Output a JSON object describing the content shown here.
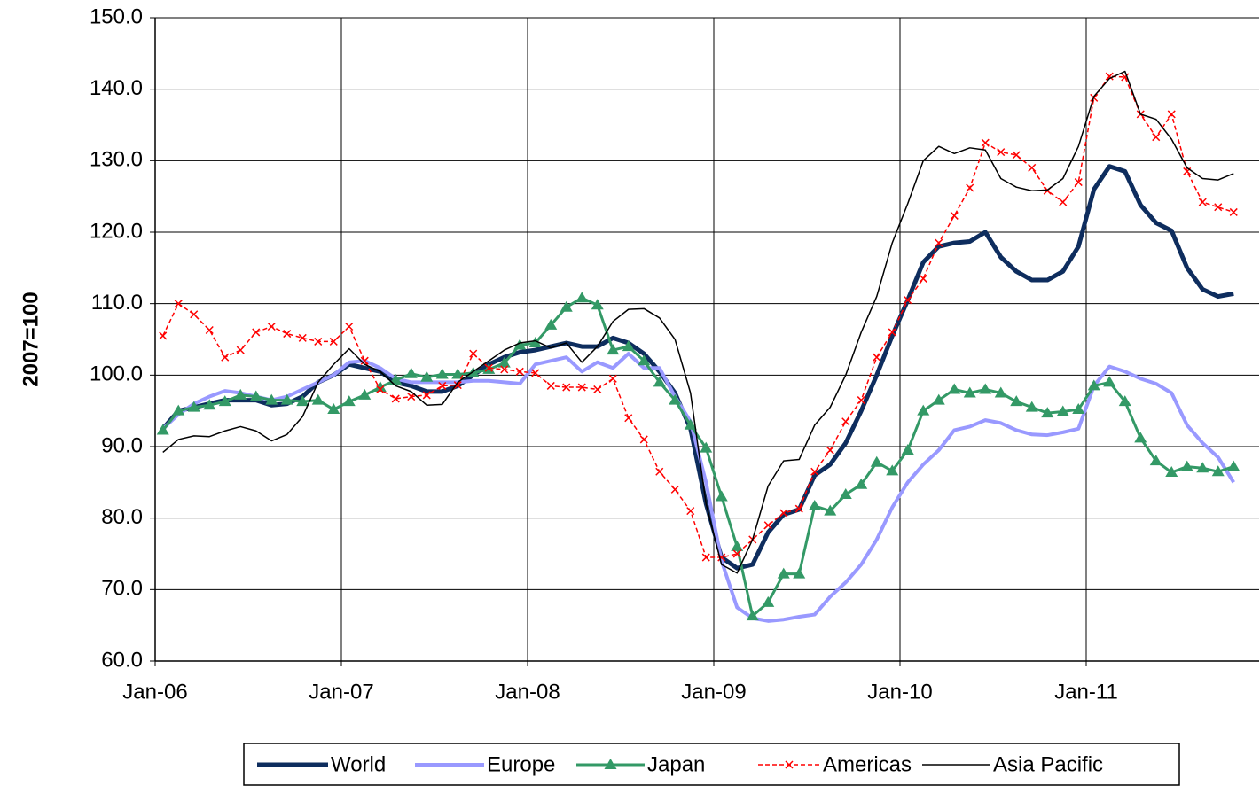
{
  "chart_data": {
    "type": "line",
    "y_label": "2007=100",
    "categories": [
      "Jan-06",
      null,
      null,
      null,
      null,
      null,
      null,
      null,
      null,
      null,
      null,
      null,
      "Jan-07",
      null,
      null,
      null,
      null,
      null,
      null,
      null,
      null,
      null,
      null,
      null,
      "Jan-08",
      null,
      null,
      null,
      null,
      null,
      null,
      null,
      null,
      null,
      null,
      null,
      "Jan-09",
      null,
      null,
      null,
      null,
      null,
      null,
      null,
      null,
      null,
      null,
      null,
      "Jan-10",
      null,
      null,
      null,
      null,
      null,
      null,
      null,
      null,
      null,
      null,
      null,
      "Jan-11",
      null,
      null,
      null,
      null,
      null,
      null,
      null,
      null,
      null
    ],
    "ylim": [
      60,
      150
    ],
    "yticks": [
      {
        "value": 60,
        "label": "60.0"
      },
      {
        "value": 70,
        "label": "70.0"
      },
      {
        "value": 80,
        "label": "80.0"
      },
      {
        "value": 90,
        "label": "90.0"
      },
      {
        "value": 100,
        "label": "100.0"
      },
      {
        "value": 110,
        "label": "110.0"
      },
      {
        "value": 120,
        "label": "120.0"
      },
      {
        "value": 130,
        "label": "130.0"
      },
      {
        "value": 140,
        "label": "140.0"
      },
      {
        "value": 150,
        "label": "150.0"
      }
    ],
    "grid": true,
    "legend": "bottom",
    "series": [
      {
        "name": "World",
        "color": "#0e2d5e",
        "width": 5,
        "marker": "none",
        "dash": "solid",
        "values": [
          92.5,
          95,
          95.5,
          96,
          96.5,
          96.5,
          96.5,
          95.8,
          96,
          97,
          99,
          100,
          101.5,
          101,
          100.5,
          99,
          98.5,
          97.7,
          97.7,
          98.5,
          100,
          101.5,
          102.5,
          103.2,
          103.5,
          104,
          104.5,
          104,
          104,
          105.2,
          104.5,
          103,
          100.5,
          97.5,
          92.5,
          82,
          74.5,
          73,
          73.5,
          78,
          80.5,
          81.2,
          86,
          87.5,
          90.5,
          95,
          100,
          105.5,
          110.5,
          115.8,
          118,
          118.5,
          118.7,
          120,
          116.5,
          114.5,
          113.3,
          113.3,
          114.5,
          118,
          126,
          129.2,
          128.5,
          123.8,
          121.3,
          120.2,
          115,
          112,
          111,
          111.4
        ]
      },
      {
        "name": "Europe",
        "color": "#9999ff",
        "width": 4,
        "marker": "none",
        "dash": "solid",
        "values": [
          92.5,
          94.5,
          96,
          97,
          97.8,
          97.5,
          97,
          96.5,
          97,
          98,
          99,
          100,
          101.8,
          102,
          101,
          99.5,
          99,
          99,
          99,
          99,
          99.2,
          99.2,
          99,
          98.8,
          101.5,
          102,
          102.5,
          100.5,
          101.8,
          101,
          103,
          101,
          101,
          97,
          93.5,
          85,
          74,
          67.5,
          66,
          65.6,
          65.8,
          66.2,
          66.5,
          69,
          71,
          73.5,
          77,
          81.5,
          85,
          87.5,
          89.5,
          92.3,
          92.8,
          93.7,
          93.3,
          92.3,
          91.7,
          91.6,
          92,
          92.5,
          98.5,
          101.2,
          100.5,
          99.5,
          98.8,
          97.5,
          93,
          90.5,
          88.5,
          85
        ]
      },
      {
        "name": "Japan",
        "color": "#339966",
        "width": 3,
        "marker": "triangle",
        "dash": "solid",
        "values": [
          92.3,
          95,
          95.5,
          95.8,
          96.3,
          97.2,
          97,
          96.5,
          96.5,
          96.3,
          96.5,
          95.2,
          96.3,
          97.2,
          98.3,
          99.3,
          100.2,
          99.7,
          100.1,
          100.1,
          100.3,
          100.8,
          101.7,
          104.2,
          104.5,
          107,
          109.5,
          110.8,
          109.8,
          103.5,
          104,
          102,
          99,
          96.5,
          93,
          89.8,
          83,
          76,
          66.3,
          68.2,
          72.2,
          72.2,
          81.7,
          81,
          83.3,
          84.7,
          87.8,
          86.6,
          89.5,
          95,
          96.5,
          98,
          97.5,
          98,
          97.5,
          96.3,
          95.5,
          94.7,
          94.9,
          95.2,
          98.5,
          99,
          96.3,
          91.2,
          88,
          86.4,
          87.2,
          87,
          86.5,
          87.2
        ]
      },
      {
        "name": "Americas",
        "color": "#ff0000",
        "width": 1.5,
        "marker": "cross",
        "dash": "dashed",
        "values": [
          105.5,
          110,
          108.5,
          106.3,
          102.5,
          103.5,
          106,
          106.8,
          105.8,
          105.2,
          104.7,
          104.7,
          106.8,
          102,
          98,
          96.7,
          97,
          97.2,
          98.5,
          98.6,
          103,
          101,
          100.8,
          100.5,
          100.3,
          98.5,
          98.3,
          98.3,
          98,
          99.5,
          94,
          91,
          86.5,
          84,
          81,
          74.5,
          74.5,
          75,
          77,
          79,
          80.7,
          81.3,
          86.5,
          89.5,
          93.5,
          96.5,
          102.5,
          106,
          110.5,
          113.5,
          118.5,
          122.3,
          126.2,
          132.5,
          131.2,
          130.8,
          129,
          125.8,
          124.2,
          127,
          138.8,
          141.8,
          141.7,
          136.5,
          133.3,
          136.5,
          128.5,
          124.2,
          123.5,
          122.8
        ]
      },
      {
        "name": "Asia Pacific",
        "color": "#000000",
        "width": 1.5,
        "marker": "none",
        "dash": "solid",
        "values": [
          89.2,
          91,
          91.5,
          91.4,
          92.2,
          92.8,
          92.2,
          90.8,
          91.7,
          94.2,
          99,
          101.5,
          103.7,
          101.5,
          100.5,
          98.5,
          97.7,
          95.8,
          95.9,
          99,
          100.5,
          102,
          103.5,
          104.5,
          104.8,
          103.8,
          104.5,
          101.8,
          104,
          107.5,
          109.2,
          109.3,
          108,
          105,
          97.5,
          82,
          73.5,
          72.3,
          77,
          84.5,
          88,
          88.2,
          93,
          95.5,
          100,
          106,
          111,
          118.5,
          124,
          130,
          132,
          131,
          131.8,
          131.5,
          127.5,
          126.3,
          125.8,
          125.9,
          127.5,
          132,
          139,
          141.5,
          142.5,
          136.5,
          135.8,
          133,
          129,
          127.5,
          127.3,
          128.2
        ]
      }
    ]
  }
}
